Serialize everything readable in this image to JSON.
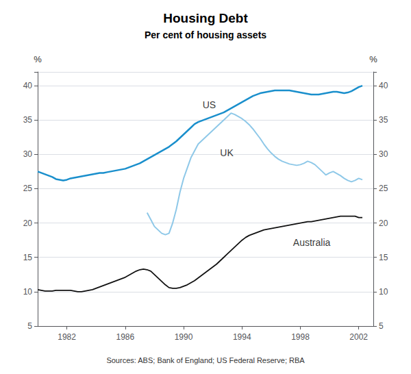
{
  "chart_data": {
    "type": "line",
    "title": "Housing Debt",
    "subtitle": "Per cent of housing assets",
    "ylabel": "%",
    "y2label": "%",
    "source": "Sources: ABS; Bank of England; US Federal Reserve; RBA",
    "xlim": [
      1980.0,
      2003.0
    ],
    "xticks": [
      1982,
      1986,
      1990,
      1994,
      1998,
      2002
    ],
    "ylim": [
      5,
      42
    ],
    "yticks": [
      5,
      10,
      15,
      20,
      25,
      30,
      35,
      40
    ],
    "y2lim": [
      5,
      42
    ],
    "y2ticks": [
      5,
      10,
      15,
      20,
      25,
      30,
      35,
      40
    ],
    "grid": true,
    "series": [
      {
        "name": "US",
        "color": "#1a8fcc",
        "x": [
          1980.0,
          1980.25,
          1980.5,
          1980.75,
          1981.0,
          1981.25,
          1981.5,
          1981.75,
          1982.0,
          1982.25,
          1982.5,
          1982.75,
          1983.0,
          1983.25,
          1983.5,
          1983.75,
          1984.0,
          1984.25,
          1984.5,
          1984.75,
          1985.0,
          1985.25,
          1985.5,
          1985.75,
          1986.0,
          1986.25,
          1986.5,
          1986.75,
          1987.0,
          1987.25,
          1987.5,
          1987.75,
          1988.0,
          1988.25,
          1988.5,
          1988.75,
          1989.0,
          1989.25,
          1989.5,
          1989.75,
          1990.0,
          1990.25,
          1990.5,
          1990.75,
          1991.0,
          1991.25,
          1991.5,
          1991.75,
          1992.0,
          1992.25,
          1992.5,
          1992.75,
          1993.0,
          1993.25,
          1993.5,
          1993.75,
          1994.0,
          1994.25,
          1994.5,
          1994.75,
          1995.0,
          1995.25,
          1995.5,
          1995.75,
          1996.0,
          1996.25,
          1996.5,
          1996.75,
          1997.0,
          1997.25,
          1997.5,
          1997.75,
          1998.0,
          1998.25,
          1998.5,
          1998.75,
          1999.0,
          1999.25,
          1999.5,
          1999.75,
          2000.0,
          2000.25,
          2000.5,
          2000.75,
          2001.0,
          2001.25,
          2001.5,
          2001.75,
          2002.0,
          2002.25
        ],
        "values": [
          27.5,
          27.3,
          27.1,
          26.9,
          26.7,
          26.4,
          26.3,
          26.2,
          26.3,
          26.5,
          26.6,
          26.7,
          26.8,
          26.9,
          27.0,
          27.1,
          27.2,
          27.3,
          27.3,
          27.4,
          27.5,
          27.6,
          27.7,
          27.8,
          27.9,
          28.1,
          28.3,
          28.5,
          28.7,
          29.0,
          29.3,
          29.6,
          29.9,
          30.2,
          30.5,
          30.8,
          31.1,
          31.5,
          31.9,
          32.4,
          32.9,
          33.4,
          33.9,
          34.4,
          34.7,
          34.9,
          35.1,
          35.3,
          35.5,
          35.7,
          35.9,
          36.1,
          36.4,
          36.7,
          37.0,
          37.3,
          37.6,
          37.9,
          38.2,
          38.5,
          38.7,
          38.9,
          39.0,
          39.1,
          39.2,
          39.3,
          39.3,
          39.3,
          39.3,
          39.3,
          39.2,
          39.1,
          39.0,
          38.9,
          38.8,
          38.7,
          38.7,
          38.7,
          38.8,
          38.9,
          39.0,
          39.1,
          39.1,
          39.0,
          38.9,
          39.0,
          39.2,
          39.5,
          39.8,
          40.0
        ]
      },
      {
        "name": "UK",
        "color": "#8ec8e8",
        "x": [
          1987.5,
          1987.75,
          1988.0,
          1988.25,
          1988.5,
          1988.75,
          1989.0,
          1989.25,
          1989.5,
          1989.75,
          1990.0,
          1990.25,
          1990.5,
          1990.75,
          1991.0,
          1991.25,
          1991.5,
          1991.75,
          1992.0,
          1992.25,
          1992.5,
          1992.75,
          1993.0,
          1993.25,
          1993.5,
          1993.75,
          1994.0,
          1994.25,
          1994.5,
          1994.75,
          1995.0,
          1995.25,
          1995.5,
          1995.75,
          1996.0,
          1996.25,
          1996.5,
          1996.75,
          1997.0,
          1997.25,
          1997.5,
          1997.75,
          1998.0,
          1998.25,
          1998.5,
          1998.75,
          1999.0,
          1999.25,
          1999.5,
          1999.75,
          2000.0,
          2000.25,
          2000.5,
          2000.75,
          2001.0,
          2001.25,
          2001.5,
          2001.75,
          2002.0,
          2002.25
        ],
        "values": [
          21.5,
          20.5,
          19.5,
          19.0,
          18.5,
          18.3,
          18.5,
          20.0,
          22.0,
          24.5,
          26.5,
          28.0,
          29.5,
          30.5,
          31.5,
          32.0,
          32.5,
          33.0,
          33.5,
          34.0,
          34.5,
          35.0,
          35.5,
          36.0,
          35.8,
          35.5,
          35.2,
          34.8,
          34.3,
          33.7,
          33.0,
          32.3,
          31.5,
          30.8,
          30.2,
          29.7,
          29.3,
          29.0,
          28.8,
          28.6,
          28.5,
          28.4,
          28.5,
          28.7,
          29.0,
          28.8,
          28.5,
          28.0,
          27.5,
          27.0,
          27.3,
          27.5,
          27.2,
          26.9,
          26.5,
          26.2,
          26.0,
          26.2,
          26.5,
          26.3
        ]
      },
      {
        "name": "Australia",
        "color": "#111111",
        "x": [
          1980.0,
          1980.25,
          1980.5,
          1980.75,
          1981.0,
          1981.25,
          1981.5,
          1981.75,
          1982.0,
          1982.25,
          1982.5,
          1982.75,
          1983.0,
          1983.25,
          1983.5,
          1983.75,
          1984.0,
          1984.25,
          1984.5,
          1984.75,
          1985.0,
          1985.25,
          1985.5,
          1985.75,
          1986.0,
          1986.25,
          1986.5,
          1986.75,
          1987.0,
          1987.25,
          1987.5,
          1987.75,
          1988.0,
          1988.25,
          1988.5,
          1988.75,
          1989.0,
          1989.25,
          1989.5,
          1989.75,
          1990.0,
          1990.25,
          1990.5,
          1990.75,
          1991.0,
          1991.25,
          1991.5,
          1991.75,
          1992.0,
          1992.25,
          1992.5,
          1992.75,
          1993.0,
          1993.25,
          1993.5,
          1993.75,
          1994.0,
          1994.25,
          1994.5,
          1994.75,
          1995.0,
          1995.25,
          1995.5,
          1995.75,
          1996.0,
          1996.25,
          1996.5,
          1996.75,
          1997.0,
          1997.25,
          1997.5,
          1997.75,
          1998.0,
          1998.25,
          1998.5,
          1998.75,
          1999.0,
          1999.25,
          1999.5,
          1999.75,
          2000.0,
          2000.25,
          2000.5,
          2000.75,
          2001.0,
          2001.25,
          2001.5,
          2001.75,
          2002.0,
          2002.25
        ],
        "values": [
          10.3,
          10.2,
          10.1,
          10.1,
          10.1,
          10.2,
          10.2,
          10.2,
          10.2,
          10.2,
          10.1,
          10.0,
          10.0,
          10.1,
          10.2,
          10.3,
          10.5,
          10.7,
          10.9,
          11.1,
          11.3,
          11.5,
          11.7,
          11.9,
          12.1,
          12.4,
          12.7,
          13.0,
          13.2,
          13.3,
          13.2,
          13.0,
          12.5,
          12.0,
          11.5,
          11.0,
          10.6,
          10.5,
          10.5,
          10.6,
          10.8,
          11.0,
          11.3,
          11.6,
          12.0,
          12.4,
          12.8,
          13.2,
          13.6,
          14.0,
          14.5,
          15.0,
          15.5,
          16.0,
          16.5,
          17.0,
          17.5,
          17.9,
          18.2,
          18.4,
          18.6,
          18.8,
          19.0,
          19.1,
          19.2,
          19.3,
          19.4,
          19.5,
          19.6,
          19.7,
          19.8,
          19.9,
          20.0,
          20.1,
          20.2,
          20.2,
          20.3,
          20.4,
          20.5,
          20.6,
          20.7,
          20.8,
          20.9,
          21.0,
          21.0,
          21.0,
          21.0,
          21.0,
          20.8,
          20.8
        ]
      }
    ],
    "annotations": [
      {
        "text": "US",
        "x": 1991.3,
        "y": 36.5
      },
      {
        "text": "UK",
        "x": 1992.5,
        "y": 29.5
      },
      {
        "text": "Australia",
        "x": 1997.5,
        "y": 16.5
      }
    ]
  }
}
